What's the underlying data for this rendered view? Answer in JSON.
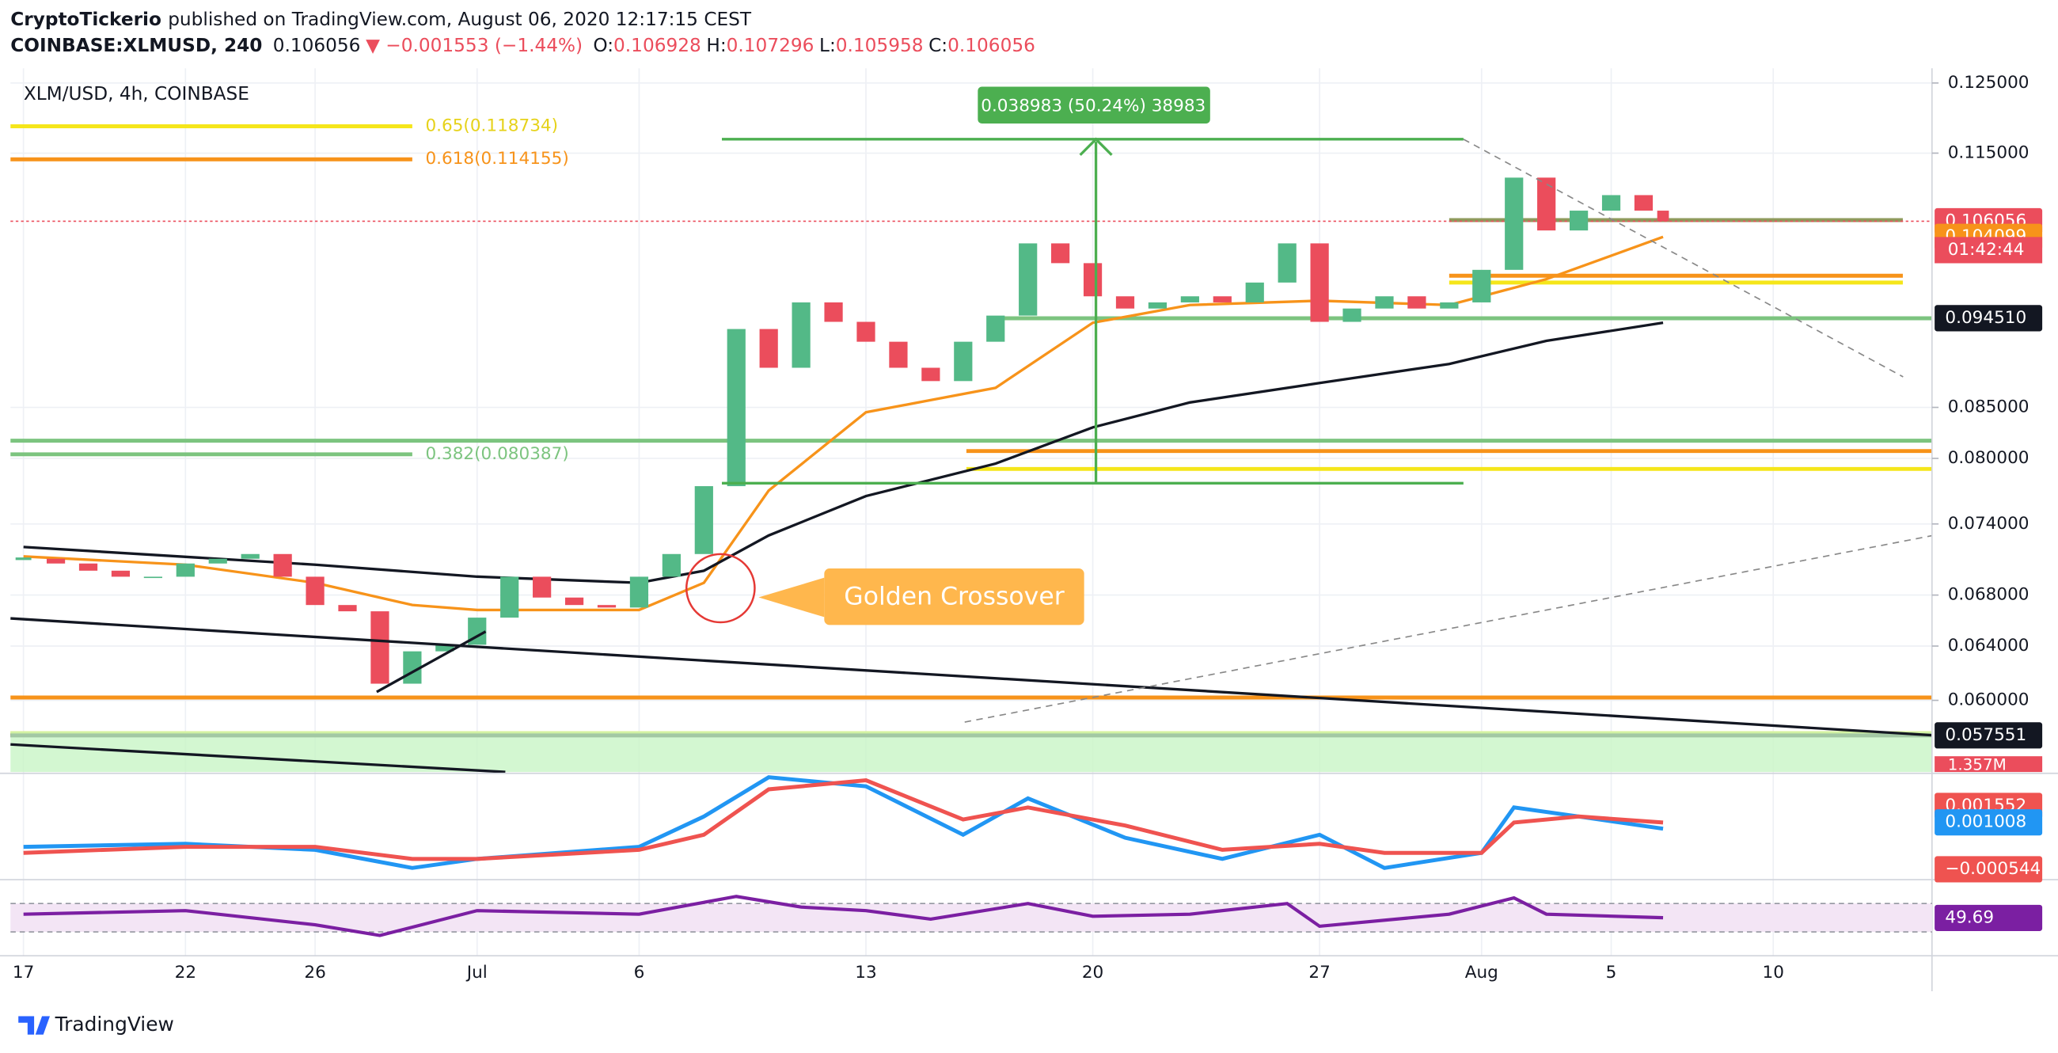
{
  "header": {
    "author": "CryptoTickerio",
    "published": "published on TradingView.com, August 06, 2020 12:17:15 CEST",
    "symbol": "COINBASE:XLMUSD, 240",
    "last": "0.106056",
    "change": "▼ −0.001553 (−1.44%)",
    "ohlc": [
      {
        "key": "O:",
        "value": "0.106928"
      },
      {
        "key": "H:",
        "value": "0.107296"
      },
      {
        "key": "L:",
        "value": "0.105958"
      },
      {
        "key": "C:",
        "value": "0.106056"
      }
    ]
  },
  "chart_data": {
    "type": "candlestick",
    "title": "XLM/USD, 4h, COINBASE",
    "up_color": "#53b987",
    "down_color": "#eb4d5c",
    "log_scale": true,
    "grid": true,
    "x": [
      0,
      1,
      2,
      3,
      4,
      5,
      6,
      7,
      8,
      9,
      10,
      11,
      12,
      13,
      14,
      15,
      16,
      17,
      18,
      19,
      20,
      21,
      22,
      23,
      24,
      25,
      26,
      27,
      28,
      29,
      30,
      31,
      32,
      33,
      34,
      35,
      36,
      37,
      38,
      39,
      40,
      41,
      42,
      43,
      44,
      45,
      46,
      47,
      48,
      49,
      50,
      50.6
    ],
    "values": [
      0.071,
      0.0706,
      0.07,
      0.0695,
      0.0695,
      0.0706,
      0.071,
      0.0714,
      0.0695,
      0.0672,
      0.0667,
      0.0612,
      0.0636,
      0.0641,
      0.0662,
      0.0695,
      0.0678,
      0.0672,
      0.067,
      0.0695,
      0.0714,
      0.0774,
      0.0933,
      0.0891,
      0.0963,
      0.0941,
      0.0919,
      0.0891,
      0.0877,
      0.0919,
      0.0948,
      0.1033,
      0.1009,
      0.097,
      0.0956,
      0.0963,
      0.097,
      0.0963,
      0.0986,
      0.1033,
      0.0941,
      0.0956,
      0.097,
      0.0956,
      0.0963,
      0.1001,
      0.1117,
      0.1049,
      0.1074,
      0.1094,
      0.1074,
      0.106056
    ],
    "xlim": [
      -0.4,
      58.9
    ],
    "ylim": [
      0.0551,
      0.1272
    ],
    "xticks": [
      {
        "value": 0,
        "label": "17"
      },
      {
        "value": 5,
        "label": "22"
      },
      {
        "value": 9,
        "label": "26"
      },
      {
        "value": 14,
        "label": "Jul"
      },
      {
        "value": 19,
        "label": "6"
      },
      {
        "value": 26,
        "label": "13"
      },
      {
        "value": 33,
        "label": "20"
      },
      {
        "value": 40,
        "label": "27"
      },
      {
        "value": 45,
        "label": "Aug"
      },
      {
        "value": 49,
        "label": "5"
      },
      {
        "value": 54,
        "label": "10"
      }
    ],
    "yticks": [
      {
        "value": 0.125,
        "label": "0.125000"
      },
      {
        "value": 0.115,
        "label": "0.115000"
      },
      {
        "value": 0.085,
        "label": "0.085000"
      },
      {
        "value": 0.08,
        "label": "0.080000"
      },
      {
        "value": 0.074,
        "label": "0.074000"
      },
      {
        "value": 0.068,
        "label": "0.068000"
      },
      {
        "value": 0.064,
        "label": "0.064000"
      },
      {
        "value": 0.06,
        "label": "0.060000"
      }
    ],
    "ma_lines": [
      {
        "color": "#f7931a",
        "x": [
          0,
          5,
          9,
          12,
          14,
          19,
          21,
          23,
          26,
          30,
          33,
          36,
          40,
          44,
          47,
          50.6
        ],
        "values": [
          0.0712,
          0.0705,
          0.069,
          0.0672,
          0.0668,
          0.0668,
          0.069,
          0.077,
          0.0845,
          0.087,
          0.094,
          0.096,
          0.0965,
          0.096,
          0.099,
          0.1041
        ]
      },
      {
        "color": "#131722",
        "x": [
          0,
          9,
          14,
          19,
          21,
          23,
          26,
          30,
          33,
          36,
          40,
          44,
          47,
          50.6
        ],
        "values": [
          0.072,
          0.0705,
          0.0695,
          0.069,
          0.07,
          0.073,
          0.0765,
          0.0795,
          0.083,
          0.0855,
          0.0875,
          0.0895,
          0.092,
          0.094
        ]
      }
    ],
    "levels": [
      {
        "value": 0.118734,
        "color": "#f5e61a",
        "from": -0.4,
        "to": 12,
        "label": "0.65(0.118734)",
        "label_color": "#e6d21a"
      },
      {
        "value": 0.114155,
        "color": "#f7931a",
        "from": -0.4,
        "to": 12,
        "label": "0.618(0.114155)",
        "label_color": "#f7931a"
      },
      {
        "value": 0.080387,
        "color": "#7cc47f",
        "from": -0.4,
        "to": 12,
        "label": "0.382(0.080387)",
        "label_color": "#7cc47f"
      },
      {
        "value": 0.0817,
        "color": "#7cc47f",
        "from": -0.4,
        "to": 58.9
      },
      {
        "value": 0.0807,
        "color": "#f7931a",
        "from": 29.1,
        "to": 58.9
      },
      {
        "value": 0.079,
        "color": "#f5e61a",
        "from": 29.1,
        "to": 58.9
      },
      {
        "value": 0.0945,
        "color": "#7cc47f",
        "from": 29.9,
        "to": 58.9
      },
      {
        "value": 0.0994,
        "color": "#f7931a",
        "from": 44,
        "to": 58
      },
      {
        "value": 0.0986,
        "color": "#f5e61a",
        "from": 44,
        "to": 58
      },
      {
        "value": 0.1062,
        "color": "#8f9a5c",
        "from": 44,
        "to": 58
      },
      {
        "value": 0.0602,
        "color": "#f7931a",
        "from": -0.4,
        "to": 58.9
      },
      {
        "value": 0.0577,
        "color": "#f5e61a",
        "from": -0.4,
        "to": 58.9
      },
      {
        "value": 0.057551,
        "color": "#131722",
        "from": -0.4,
        "to": 58.9
      }
    ],
    "last_price_line": {
      "value": 0.106056,
      "color": "#eb4d5c"
    },
    "measure_label": "0.038983 (50.24%) 38983",
    "callout": "Golden Crossover",
    "price_tags": [
      {
        "value": 0.106056,
        "label": "0.106056",
        "color": "#eb4d5c"
      },
      {
        "value": 0.104099,
        "label": "0.104099",
        "color": "#f7931a"
      },
      {
        "value": 0.09451,
        "label": "0.094510",
        "color": "#131722"
      },
      {
        "value": 0.057551,
        "label": "0.057551",
        "color": "#131722"
      }
    ],
    "countdown": "01:42:44",
    "volume_label": "1.357M",
    "macd": {
      "ylim": [
        -0.0008,
        0.0025
      ],
      "lines": [
        {
          "color": "#2196f3",
          "x": [
            0,
            5,
            9,
            12,
            14,
            19,
            21,
            23,
            26,
            29,
            31,
            34,
            37,
            40,
            42,
            45,
            46,
            48,
            50.6
          ],
          "values": [
            0.0002,
            0.0003,
            0.0001,
            -0.0005,
            -0.0002,
            0.0002,
            0.0012,
            0.0025,
            0.0022,
            0.0006,
            0.0018,
            0.0005,
            -0.0002,
            0.0006,
            -0.0005,
            0.0,
            0.0015,
            0.0012,
            0.0008
          ]
        },
        {
          "color": "#ef5350",
          "x": [
            0,
            5,
            9,
            12,
            14,
            19,
            21,
            23,
            26,
            29,
            31,
            34,
            37,
            40,
            42,
            45,
            46,
            48,
            50.6
          ],
          "values": [
            0.0,
            0.0002,
            0.0002,
            -0.0002,
            -0.0002,
            0.0001,
            0.0006,
            0.0021,
            0.0024,
            0.0011,
            0.0015,
            0.0009,
            0.0001,
            0.0003,
            0.0,
            0.0,
            0.001,
            0.0012,
            0.001
          ]
        }
      ],
      "tags": [
        {
          "value": 0.001552,
          "label": "0.001552",
          "color": "#ef5350"
        },
        {
          "value": 0.001008,
          "label": "0.001008",
          "color": "#2196f3"
        },
        {
          "value": -0.000544,
          "label": "−0.000544",
          "color": "#ef5350"
        }
      ]
    },
    "rsi": {
      "ylim": [
        0,
        100
      ],
      "bands": [
        30,
        70
      ],
      "color": "#7b1fa2",
      "x": [
        0,
        5,
        9,
        11,
        14,
        19,
        22,
        24,
        26,
        28,
        31,
        33,
        36,
        39,
        40,
        44,
        46,
        47,
        50.6
      ],
      "values": [
        55,
        60,
        40,
        25,
        60,
        55,
        80,
        65,
        60,
        48,
        70,
        52,
        55,
        70,
        38,
        55,
        78,
        55,
        50
      ],
      "tag": {
        "value": 49.69,
        "label": "49.69",
        "color": "#7b1fa2"
      }
    }
  },
  "footer": {
    "brand": "TradingView"
  }
}
